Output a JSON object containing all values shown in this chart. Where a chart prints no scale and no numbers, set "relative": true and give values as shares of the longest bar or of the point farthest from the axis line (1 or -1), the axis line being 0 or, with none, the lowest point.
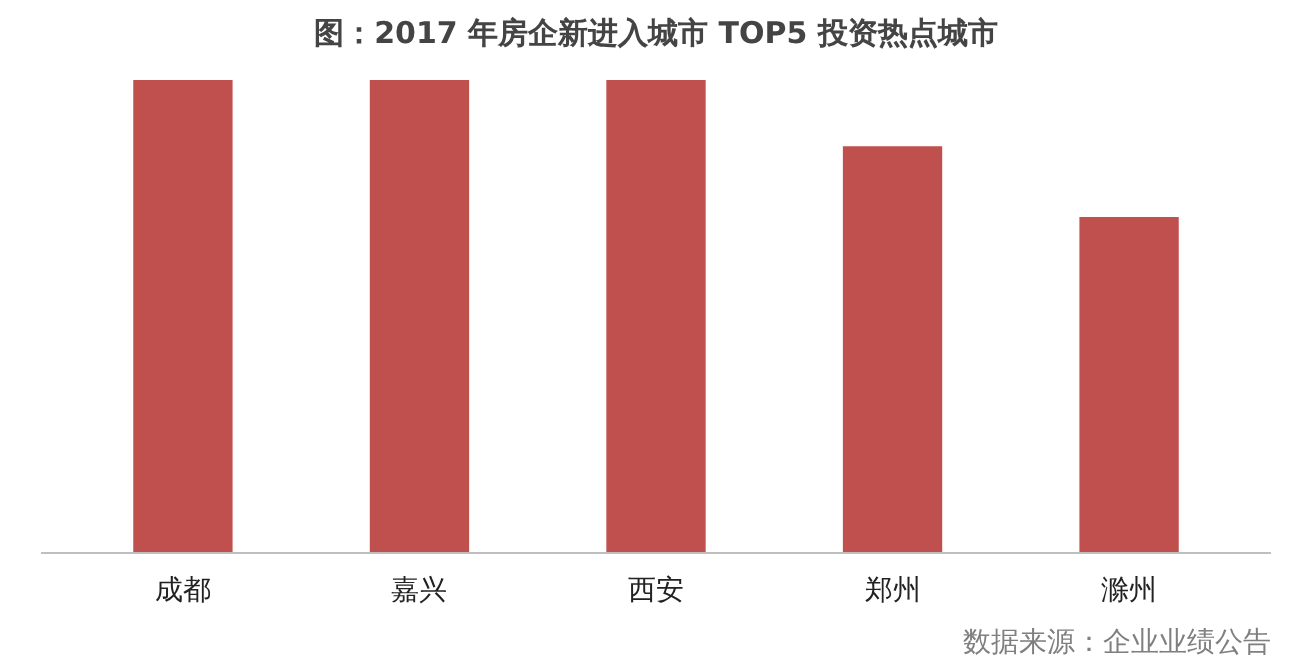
{
  "chart_data": {
    "type": "bar",
    "title": "图：2017 年房企新进入城市 TOP5 投资热点城市",
    "categories": [
      "成都",
      "嘉兴",
      "西安",
      "郑州",
      "滁州"
    ],
    "values": [
      1,
      1,
      1,
      0.86,
      0.71
    ],
    "color": "#c0504d",
    "relative": true,
    "grid": false,
    "annotations": [
      "数据来源：企业业绩公告"
    ]
  }
}
